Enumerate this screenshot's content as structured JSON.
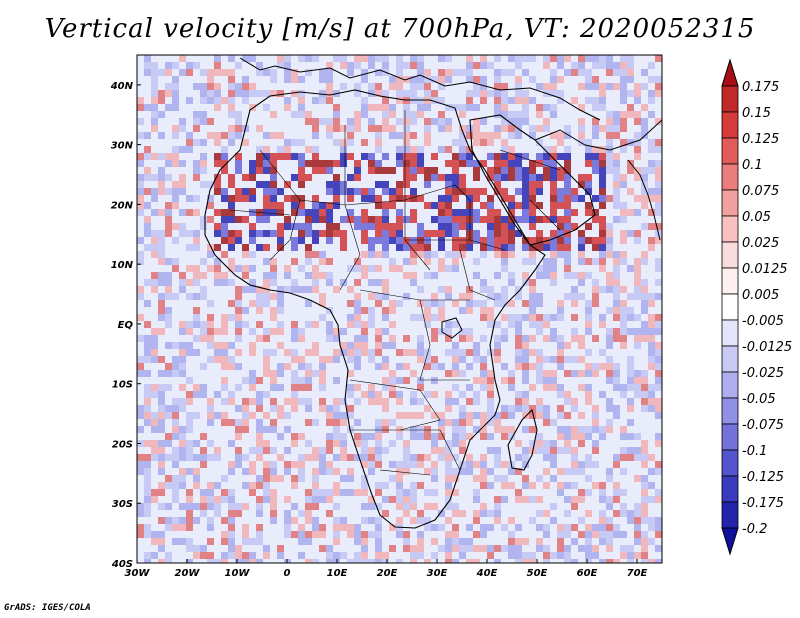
{
  "title": "Vertical velocity [m/s] at 700hPa, VT: 2020052315",
  "credit": "GrADS: IGES/COLA",
  "chart_data": {
    "type": "heatmap",
    "variable": "Vertical velocity",
    "units": "m/s",
    "level": "700hPa",
    "valid_time": "2020052315",
    "lon_range": [
      -30,
      75
    ],
    "lat_range": [
      -40,
      45
    ],
    "x_ticks": [
      "30W",
      "20W",
      "10W",
      "0",
      "10E",
      "20E",
      "30E",
      "40E",
      "50E",
      "60E",
      "70E"
    ],
    "y_ticks": [
      "40N",
      "30N",
      "20N",
      "10N",
      "EQ",
      "10S",
      "20S",
      "30S",
      "40S"
    ],
    "colorbar": {
      "labels": [
        "0.175",
        "0.15",
        "0.125",
        "0.1",
        "0.075",
        "0.05",
        "0.025",
        "0.0125",
        "0.005",
        "-0.005",
        "-0.0125",
        "-0.025",
        "-0.05",
        "-0.075",
        "-0.1",
        "-0.125",
        "-0.175",
        "-0.2"
      ],
      "colors": [
        "#a50f15",
        "#c0282a",
        "#d73c3c",
        "#e35a5a",
        "#ec7d7d",
        "#f3a0a0",
        "#f8c0c0",
        "#fbdcdc",
        "#fff0f0",
        "#ffffff",
        "#e4e4fa",
        "#cacaf6",
        "#aeaef0",
        "#9090e6",
        "#7272da",
        "#5454cc",
        "#3a3abd",
        "#2424aa",
        "#1010a0"
      ]
    },
    "colors": {
      "ocean_base": "#d9d9f7",
      "positive": "#d43a3a",
      "negative": "#4a4ad2",
      "boundary": "#000000"
    }
  }
}
